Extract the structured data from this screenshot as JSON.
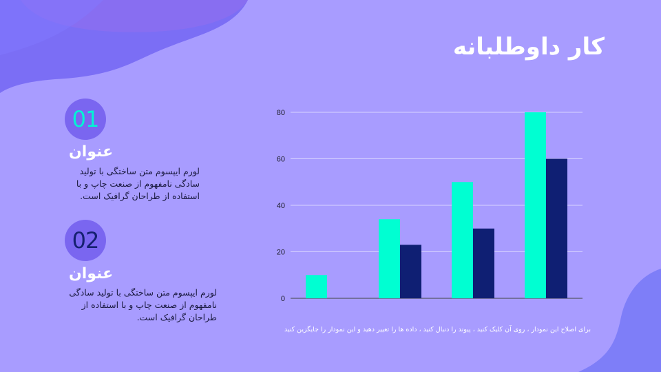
{
  "title": "کار داوطلبانه",
  "items": [
    {
      "number": "01",
      "heading": "عنوان",
      "text": "لورم ایپسوم متن ساختگی با تولید سادگی نامفهوم از صنعت چاپ و با استفاده از طراحان گرافیک است."
    },
    {
      "number": "02",
      "heading": "عنوان",
      "text": "لورم ایپسوم متن ساختگی با تولید سادگی نامفهوم از صنعت چاپ و با استفاده از طراحان گرافیک است."
    }
  ],
  "chart_note": "برای اصلاح این نمودار ، روی آن کلیک کنید ، پیوند را دنبال کنید ، داده ها را تغییر دهید و این نمودار را جایگزین کنید",
  "colors": {
    "background": "#a89cff",
    "series_1": "#00ffd2",
    "series_2": "#0f1f73",
    "badge": "#7a66f0"
  },
  "chart_data": {
    "type": "bar",
    "categories": [
      "",
      "",
      "",
      ""
    ],
    "series": [
      {
        "values": [
          10,
          34,
          50,
          80
        ]
      },
      {
        "values": [
          0,
          23,
          30,
          60
        ]
      }
    ],
    "yticks": [
      0,
      20,
      40,
      60,
      80
    ],
    "ylim": [
      0,
      80
    ],
    "grid": true,
    "legend": "none"
  }
}
